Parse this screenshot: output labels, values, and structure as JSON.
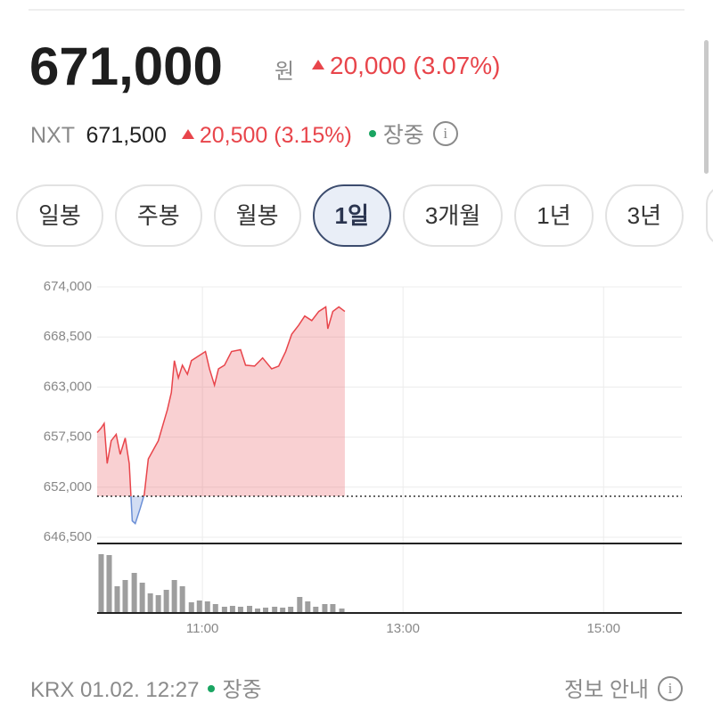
{
  "header": {
    "price": "671,000",
    "unit": "원",
    "change": "20,000 (3.07%)"
  },
  "nxt": {
    "label": "NXT",
    "price": "671,500",
    "change": "20,500 (3.15%)",
    "status": "장중"
  },
  "tabs": [
    "일봉",
    "주봉",
    "월봉",
    "1일",
    "3개월",
    "1년",
    "3년"
  ],
  "selected_tab": 3,
  "chart_data": {
    "type": "line",
    "color": "#e8454b",
    "below_color": "#6b8fd6",
    "baseline": 651000,
    "x": [
      9.95,
      9.99,
      10.02,
      10.05,
      10.09,
      10.14,
      10.18,
      10.23,
      10.27,
      10.3,
      10.33,
      10.38,
      10.42,
      10.46,
      10.51,
      10.56,
      10.61,
      10.65,
      10.69,
      10.72,
      10.76,
      10.8,
      10.85,
      10.89,
      10.96,
      11.03,
      11.07,
      11.12,
      11.16,
      11.22,
      11.29,
      11.38,
      11.43,
      11.52,
      11.6,
      11.69,
      11.76,
      11.83,
      11.89,
      11.96,
      12.02,
      12.09,
      12.16,
      12.23,
      12.25,
      12.3,
      12.36,
      12.42
    ],
    "values": [
      658000,
      658500,
      659000,
      654600,
      657100,
      657800,
      655600,
      657400,
      654600,
      648300,
      648000,
      649700,
      651200,
      655100,
      656100,
      657100,
      659000,
      660500,
      662400,
      665900,
      664000,
      665400,
      664400,
      665900,
      666400,
      666900,
      665000,
      663200,
      665000,
      665400,
      666900,
      667100,
      665400,
      665300,
      666200,
      665000,
      665300,
      666900,
      668800,
      669800,
      670800,
      670300,
      671300,
      671800,
      669400,
      671300,
      671800,
      671300
    ],
    "ylim": [
      646500,
      674000
    ],
    "yticks": [
      {
        "value": 674000,
        "label": "674,000"
      },
      {
        "value": 668500,
        "label": "668,500"
      },
      {
        "value": 663000,
        "label": "663,000"
      },
      {
        "value": 657500,
        "label": "657,500"
      },
      {
        "value": 652000,
        "label": "652,000"
      },
      {
        "value": 646500,
        "label": "646,500"
      }
    ],
    "xlim": [
      9.95,
      15.78
    ],
    "xticks": [
      {
        "value": 11,
        "label": "11:00"
      },
      {
        "value": 13,
        "label": "13:00"
      },
      {
        "value": 15,
        "label": "15:00"
      }
    ],
    "volume": {
      "color": "#9e9e9e",
      "ylim": [
        0,
        70
      ],
      "x": [
        9.99,
        10.07,
        10.15,
        10.23,
        10.32,
        10.4,
        10.48,
        10.56,
        10.64,
        10.72,
        10.8,
        10.89,
        10.97,
        11.05,
        11.13,
        11.22,
        11.3,
        11.38,
        11.47,
        11.55,
        11.63,
        11.72,
        11.8,
        11.88,
        11.97,
        12.05,
        12.13,
        12.22,
        12.3,
        12.39
      ],
      "values": [
        66,
        65,
        30,
        37,
        45,
        34,
        22,
        20,
        26,
        37,
        30,
        12,
        14,
        13,
        10,
        7,
        8,
        7,
        8,
        5,
        6,
        7,
        6,
        7,
        18,
        13,
        7,
        10,
        10,
        5
      ]
    }
  },
  "footer": {
    "info": "KRX 01.02. 12:27",
    "status": "장중",
    "guide": "정보 안내"
  }
}
